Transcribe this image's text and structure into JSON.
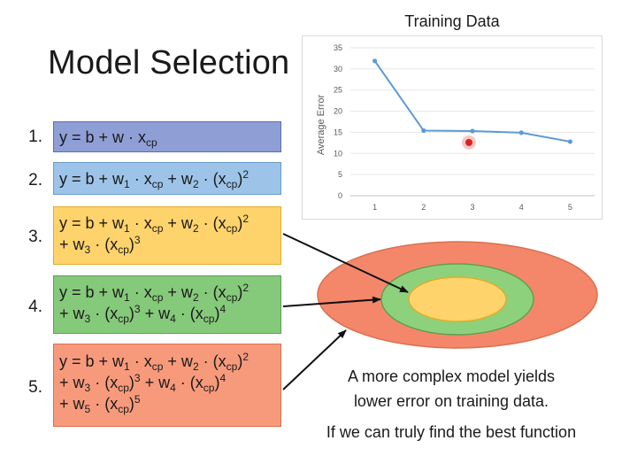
{
  "slide": {
    "title": "Model Selection",
    "caption_line1": "A more complex model yields",
    "caption_line2": "lower error on training data.",
    "caption_line3": "If we can truly find the best function"
  },
  "models": [
    {
      "number": "1.",
      "color": "#8f9fd6"
    },
    {
      "number": "2.",
      "color": "#9dc4e8"
    },
    {
      "number": "3.",
      "color": "#ffd36b"
    },
    {
      "number": "4.",
      "color": "#85c97a"
    },
    {
      "number": "5.",
      "color": "#f79a7c"
    }
  ],
  "nested_sets": {
    "outer_color": "#f4876a",
    "middle_color": "#8ed17c",
    "inner_color": "#ffd36b"
  },
  "chart_data": {
    "type": "line",
    "title": "Training Data",
    "xlabel": "",
    "ylabel": "Average Error",
    "x": [
      1,
      2,
      3,
      4,
      5
    ],
    "series": [
      {
        "values": [
          31.9,
          15.4,
          15.3,
          14.9,
          12.8
        ],
        "color": "#5b9bd5"
      }
    ],
    "ylim": [
      0,
      35
    ],
    "yticks": [
      0,
      5,
      10,
      15,
      20,
      25,
      30,
      35
    ],
    "grid": true,
    "cursor_marker_color": "#e02020"
  }
}
